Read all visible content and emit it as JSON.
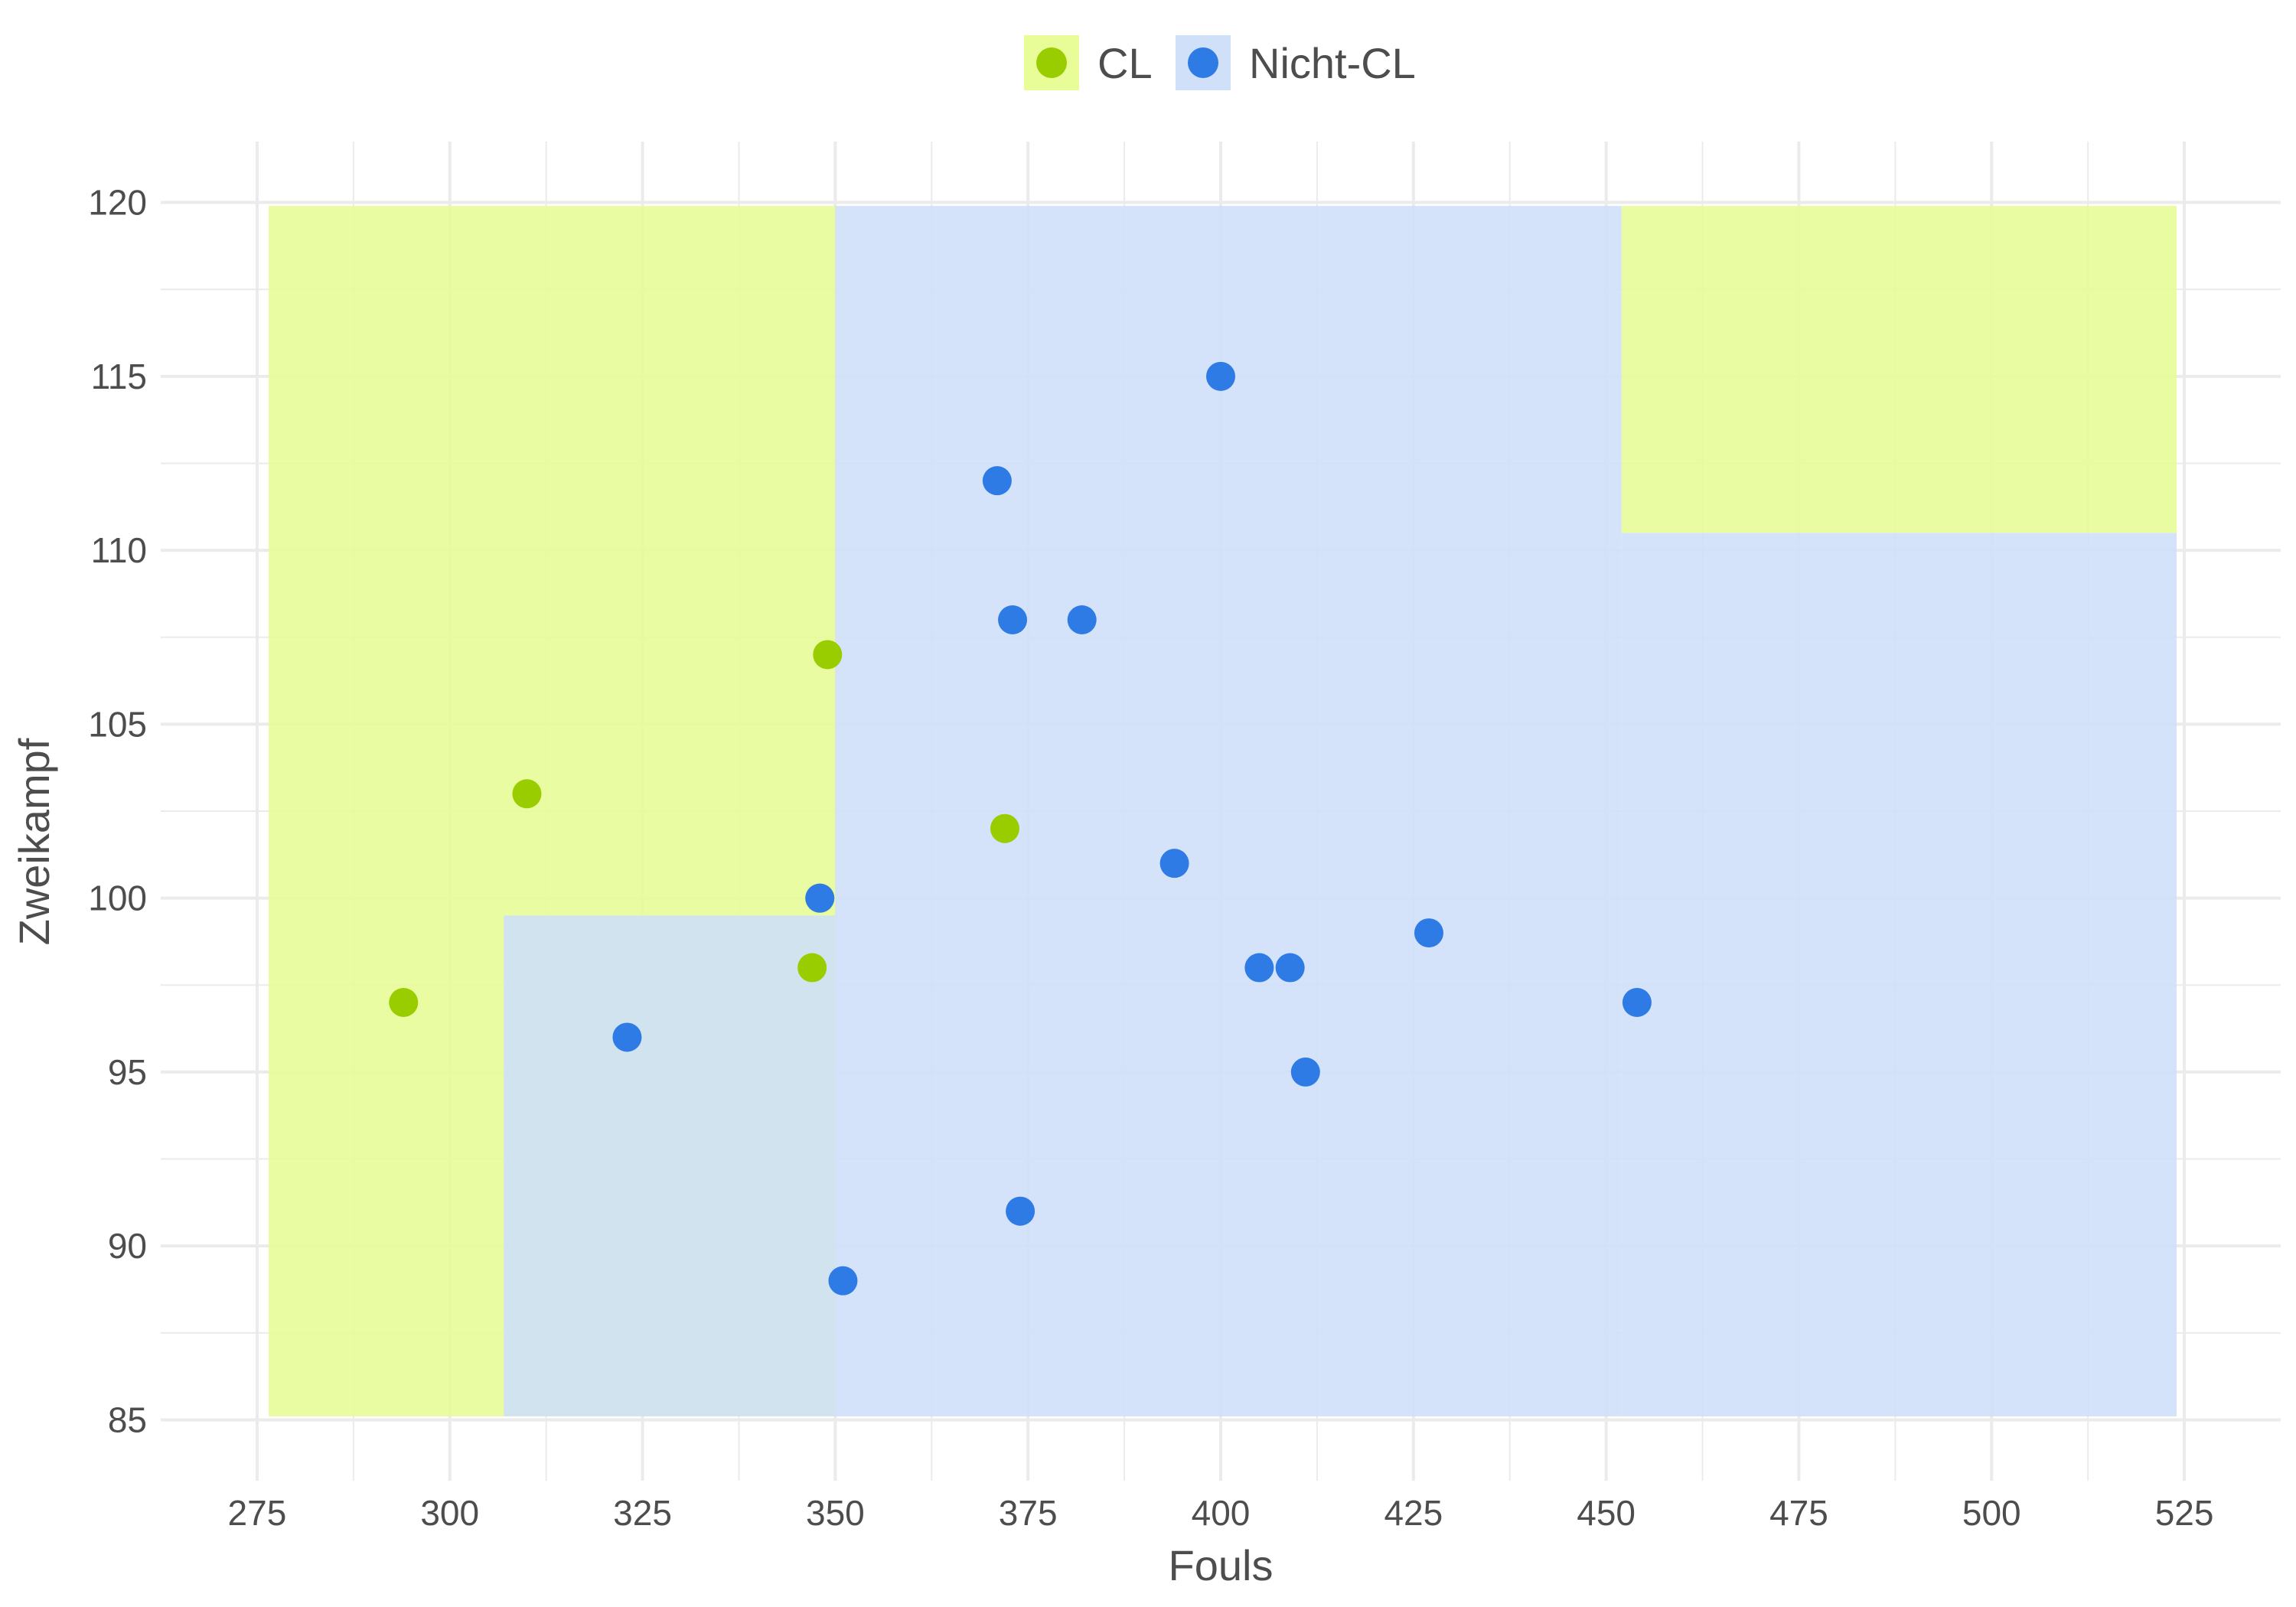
{
  "chart_data": {
    "type": "scatter",
    "xlabel": "Fouls",
    "ylabel": "Zweikampf",
    "xlim": [
      262.5,
      537.5
    ],
    "ylim": [
      83.25,
      121.75
    ],
    "xticks": [
      275,
      300,
      325,
      350,
      375,
      400,
      425,
      450,
      475,
      500,
      525
    ],
    "yticks": [
      85,
      90,
      95,
      100,
      105,
      110,
      115,
      120
    ],
    "grid": true,
    "legend": {
      "placement": "top",
      "entries": [
        {
          "label": "CL",
          "class": "CL"
        },
        {
          "label": "Nicht-CL",
          "class": "Nicht-CL"
        }
      ]
    },
    "colors": {
      "CL": "#9acd00",
      "Nicht-CL": "#2f7be6",
      "CL_region": "#e8fc98",
      "Nicht-CL_region": "#cfe0f8",
      "grid": "#ebebeb"
    },
    "regions": [
      {
        "class": "CL",
        "x": [
          276.5,
          350
        ],
        "y": [
          85.1,
          119.9
        ]
      },
      {
        "class": "Nicht-CL",
        "x": [
          307,
          350
        ],
        "y": [
          85.1,
          99.5
        ]
      },
      {
        "class": "Nicht-CL",
        "x": [
          350,
          452
        ],
        "y": [
          85.1,
          119.9
        ]
      },
      {
        "class": "Nicht-CL",
        "x": [
          452,
          524
        ],
        "y": [
          85.1,
          110.5
        ]
      },
      {
        "class": "CL",
        "x": [
          452,
          524
        ],
        "y": [
          110.5,
          119.9
        ]
      }
    ],
    "series": [
      {
        "name": "CL",
        "points": [
          {
            "x": 294,
            "y": 97
          },
          {
            "x": 310,
            "y": 103
          },
          {
            "x": 347,
            "y": 98
          },
          {
            "x": 349,
            "y": 107
          },
          {
            "x": 372,
            "y": 102
          },
          {
            "x": 348,
            "y": 100
          }
        ]
      },
      {
        "name": "Nicht-CL",
        "points": [
          {
            "x": 323,
            "y": 96
          },
          {
            "x": 348,
            "y": 100
          },
          {
            "x": 351,
            "y": 89
          },
          {
            "x": 371,
            "y": 112
          },
          {
            "x": 373,
            "y": 108
          },
          {
            "x": 374,
            "y": 91
          },
          {
            "x": 382,
            "y": 108
          },
          {
            "x": 394,
            "y": 101
          },
          {
            "x": 400,
            "y": 115
          },
          {
            "x": 405,
            "y": 98
          },
          {
            "x": 409,
            "y": 98
          },
          {
            "x": 411,
            "y": 95
          },
          {
            "x": 427,
            "y": 99
          },
          {
            "x": 454,
            "y": 97
          }
        ]
      }
    ]
  }
}
